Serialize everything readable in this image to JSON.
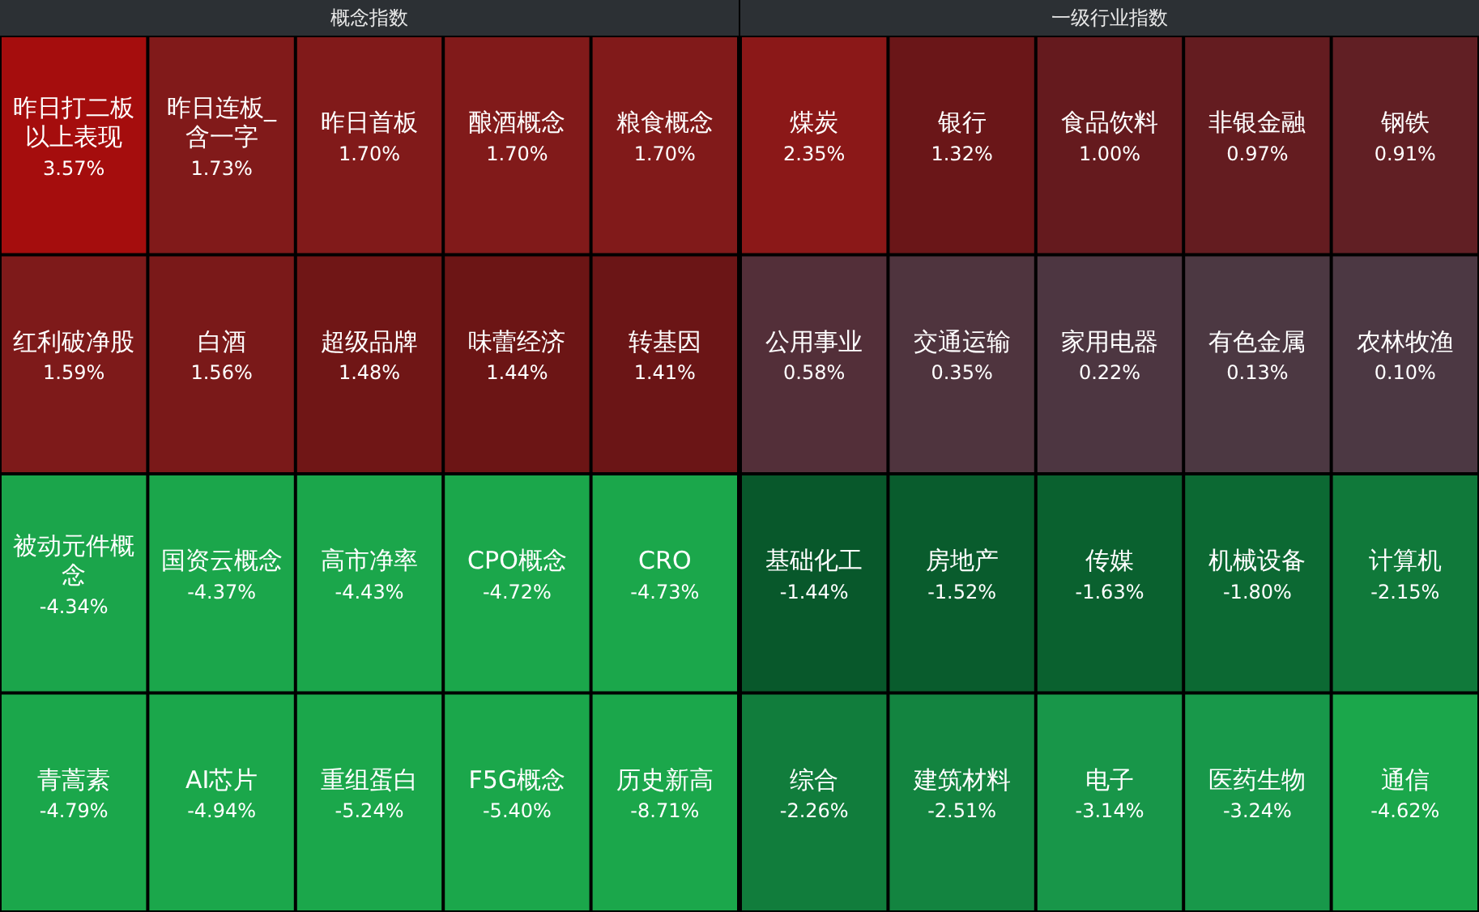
{
  "chart_data": [
    {
      "type": "other",
      "title": "概念指数",
      "categories": [
        "昨日打二板以上表现",
        "昨日连板_含一字",
        "昨日首板",
        "酿酒概念",
        "粮食概念",
        "红利破净股",
        "白酒",
        "超级品牌",
        "味蕾经济",
        "转基因",
        "被动元件概念",
        "国资云概念",
        "高市净率",
        "CPO概念",
        "CRO",
        "青蒿素",
        "AI芯片",
        "重组蛋白",
        "F5G概念",
        "历史新高"
      ],
      "values": [
        3.57,
        1.73,
        1.7,
        1.7,
        1.7,
        1.59,
        1.56,
        1.48,
        1.44,
        1.41,
        -4.34,
        -4.37,
        -4.43,
        -4.72,
        -4.73,
        -4.79,
        -4.94,
        -5.24,
        -5.4,
        -8.71
      ],
      "value_labels": [
        "3.57%",
        "1.73%",
        "1.70%",
        "1.70%",
        "1.70%",
        "1.59%",
        "1.56%",
        "1.48%",
        "1.44%",
        "1.41%",
        "-4.34%",
        "-4.37%",
        "-4.43%",
        "-4.72%",
        "-4.73%",
        "-4.79%",
        "-4.94%",
        "-5.24%",
        "-5.40%",
        "-8.71%"
      ]
    },
    {
      "type": "other",
      "title": "一级行业指数",
      "categories": [
        "煤炭",
        "银行",
        "食品饮料",
        "非银金融",
        "钢铁",
        "公用事业",
        "交通运输",
        "家用电器",
        "有色金属",
        "农林牧渔",
        "基础化工",
        "房地产",
        "传媒",
        "机械设备",
        "计算机",
        "综合",
        "建筑材料",
        "电子",
        "医药生物",
        "通信"
      ],
      "values": [
        2.35,
        1.32,
        1.0,
        0.97,
        0.91,
        0.58,
        0.35,
        0.22,
        0.13,
        0.1,
        -1.44,
        -1.52,
        -1.63,
        -1.8,
        -2.15,
        -2.26,
        -2.51,
        -3.14,
        -3.24,
        -4.62
      ],
      "value_labels": [
        "2.35%",
        "1.32%",
        "1.00%",
        "0.97%",
        "0.91%",
        "0.58%",
        "0.35%",
        "0.22%",
        "0.13%",
        "0.10%",
        "-1.44%",
        "-1.52%",
        "-1.63%",
        "-1.80%",
        "-2.15%",
        "-2.26%",
        "-2.51%",
        "-3.14%",
        "-3.24%",
        "-4.62%"
      ]
    }
  ]
}
